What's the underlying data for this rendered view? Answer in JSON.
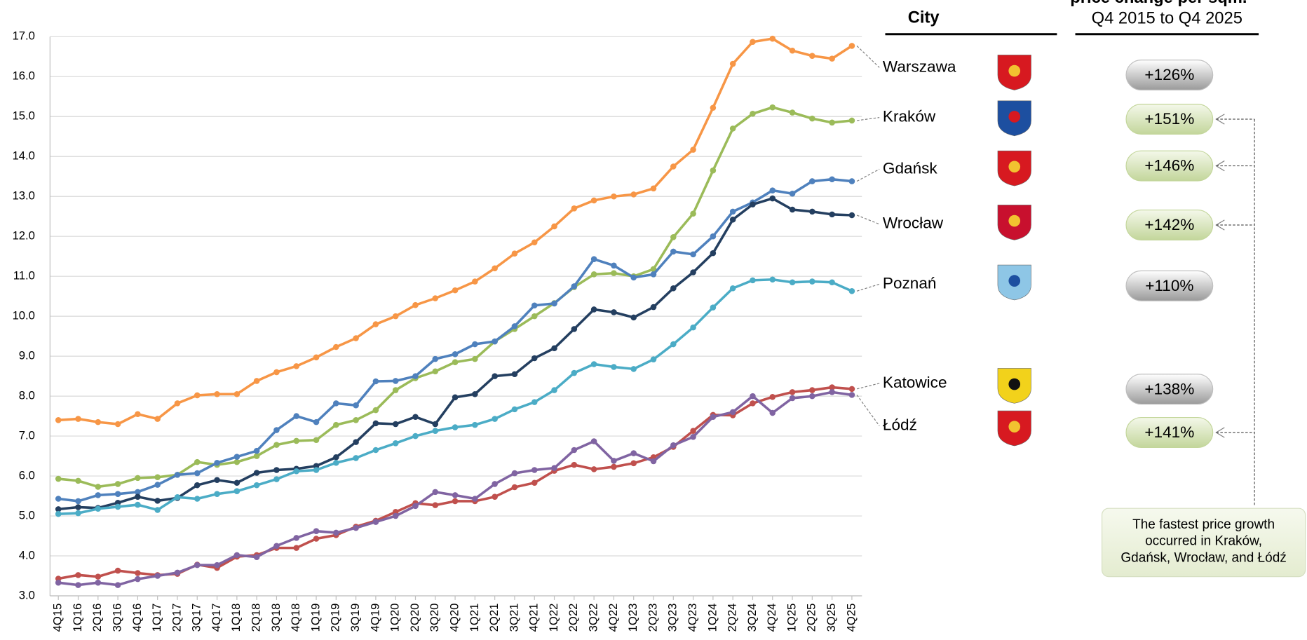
{
  "chart_data": {
    "type": "line",
    "header_change": "price change per sqm.",
    "header_period": "Q4 2015 to Q4 2025",
    "header_city": "City",
    "note": [
      "The fastest price growth",
      "occurred in Kraków,",
      "Gdańsk, Wrocław, and Łódź"
    ],
    "categories": [
      "4Q15",
      "1Q16",
      "2Q16",
      "3Q16",
      "4Q16",
      "1Q17",
      "2Q17",
      "3Q17",
      "4Q17",
      "1Q18",
      "2Q18",
      "3Q18",
      "4Q18",
      "1Q19",
      "2Q19",
      "3Q19",
      "4Q19",
      "1Q20",
      "2Q20",
      "3Q20",
      "4Q20",
      "1Q21",
      "2Q21",
      "3Q21",
      "4Q21",
      "1Q22",
      "2Q22",
      "3Q22",
      "4Q22",
      "1Q23",
      "2Q23",
      "3Q23",
      "4Q23",
      "1Q24",
      "2Q24",
      "3Q24",
      "4Q24",
      "1Q25",
      "2Q25",
      "3Q25",
      "4Q25"
    ],
    "ylim": [
      3,
      17
    ],
    "yticks": [
      {
        "value": 3,
        "label": "3.0"
      },
      {
        "value": 4,
        "label": "4.0"
      },
      {
        "value": 5,
        "label": "5.0"
      },
      {
        "value": 6,
        "label": "6.0"
      },
      {
        "value": 7,
        "label": "7.0"
      },
      {
        "value": 8,
        "label": "8.0"
      },
      {
        "value": 9,
        "label": "9.0"
      },
      {
        "value": 10,
        "label": "10.0"
      },
      {
        "value": 11,
        "label": "11.0"
      },
      {
        "value": 12,
        "label": "12.0"
      },
      {
        "value": 13,
        "label": "13.0"
      },
      {
        "value": 14,
        "label": "14.0"
      },
      {
        "value": 15,
        "label": "15.0"
      },
      {
        "value": 16,
        "label": "16.0"
      },
      {
        "value": 17,
        "label": "17.0"
      }
    ],
    "grid": true,
    "series": [
      {
        "name": "Warszawa",
        "color": "#f79646",
        "change": 126,
        "change_label": "+126%",
        "highlight": false,
        "values": [
          7.4,
          7.43,
          7.35,
          7.3,
          7.55,
          7.43,
          7.82,
          8.02,
          8.05,
          8.05,
          8.38,
          8.6,
          8.75,
          8.97,
          9.23,
          9.45,
          9.8,
          10.0,
          10.28,
          10.45,
          10.65,
          10.87,
          11.2,
          11.57,
          11.85,
          12.25,
          12.7,
          12.9,
          13.0,
          13.05,
          13.2,
          13.75,
          14.17,
          15.22,
          16.32,
          16.87,
          16.95,
          16.65,
          16.52,
          16.45,
          16.77
        ]
      },
      {
        "name": "Kraków",
        "color": "#9bbb59",
        "change": 151,
        "change_label": "+151%",
        "highlight": true,
        "values": [
          5.93,
          5.88,
          5.73,
          5.8,
          5.95,
          5.97,
          6.03,
          6.35,
          6.28,
          6.35,
          6.5,
          6.78,
          6.88,
          6.9,
          7.28,
          7.4,
          7.65,
          8.15,
          8.45,
          8.62,
          8.85,
          8.93,
          9.37,
          9.68,
          10.0,
          10.33,
          10.73,
          11.05,
          11.08,
          11.0,
          11.18,
          11.98,
          12.57,
          13.65,
          14.7,
          15.07,
          15.23,
          15.1,
          14.95,
          14.85,
          14.9
        ]
      },
      {
        "name": "Gdańsk",
        "color": "#4f81bd",
        "change": 146,
        "change_label": "+146%",
        "highlight": true,
        "values": [
          5.43,
          5.37,
          5.52,
          5.55,
          5.6,
          5.78,
          6.03,
          6.07,
          6.33,
          6.48,
          6.63,
          7.15,
          7.5,
          7.35,
          7.82,
          7.77,
          8.37,
          8.38,
          8.5,
          8.93,
          9.05,
          9.3,
          9.37,
          9.75,
          10.27,
          10.32,
          10.75,
          11.43,
          11.27,
          10.97,
          11.05,
          11.62,
          11.55,
          12.0,
          12.62,
          12.85,
          13.15,
          13.07,
          13.38,
          13.43,
          13.38
        ]
      },
      {
        "name": "Wrocław",
        "color": "#243f60",
        "change": 142,
        "change_label": "+142%",
        "highlight": true,
        "values": [
          5.17,
          5.22,
          5.2,
          5.33,
          5.48,
          5.38,
          5.45,
          5.77,
          5.9,
          5.83,
          6.08,
          6.15,
          6.18,
          6.25,
          6.47,
          6.85,
          7.32,
          7.3,
          7.48,
          7.3,
          7.97,
          8.05,
          8.5,
          8.55,
          8.95,
          9.2,
          9.68,
          10.17,
          10.1,
          9.97,
          10.23,
          10.7,
          11.1,
          11.58,
          12.42,
          12.8,
          12.95,
          12.67,
          12.62,
          12.55,
          12.53
        ]
      },
      {
        "name": "Poznań",
        "color": "#4bacc6",
        "change": 110,
        "change_label": "+110%",
        "highlight": false,
        "values": [
          5.05,
          5.07,
          5.18,
          5.23,
          5.28,
          5.15,
          5.47,
          5.43,
          5.55,
          5.62,
          5.77,
          5.92,
          6.12,
          6.15,
          6.33,
          6.45,
          6.65,
          6.82,
          7.0,
          7.13,
          7.22,
          7.28,
          7.43,
          7.67,
          7.85,
          8.15,
          8.58,
          8.8,
          8.73,
          8.68,
          8.92,
          9.3,
          9.72,
          10.22,
          10.7,
          10.9,
          10.92,
          10.85,
          10.87,
          10.85,
          10.63
        ]
      },
      {
        "name": "Katowice",
        "color": "#c0504d",
        "change": 138,
        "change_label": "+138%",
        "highlight": false,
        "values": [
          3.43,
          3.52,
          3.48,
          3.63,
          3.57,
          3.52,
          3.55,
          3.78,
          3.7,
          3.98,
          4.02,
          4.2,
          4.2,
          4.43,
          4.52,
          4.73,
          4.88,
          5.1,
          5.32,
          5.27,
          5.37,
          5.37,
          5.48,
          5.72,
          5.83,
          6.13,
          6.28,
          6.17,
          6.23,
          6.32,
          6.47,
          6.73,
          7.13,
          7.53,
          7.52,
          7.82,
          7.98,
          8.1,
          8.15,
          8.22,
          8.18
        ]
      },
      {
        "name": "Łódź",
        "color": "#8064a2",
        "change": 141,
        "change_label": "+141%",
        "highlight": true,
        "values": [
          3.33,
          3.27,
          3.33,
          3.27,
          3.42,
          3.5,
          3.58,
          3.77,
          3.77,
          4.02,
          3.97,
          4.25,
          4.45,
          4.62,
          4.58,
          4.7,
          4.85,
          5.0,
          5.25,
          5.6,
          5.52,
          5.43,
          5.8,
          6.07,
          6.15,
          6.2,
          6.65,
          6.87,
          6.38,
          6.57,
          6.37,
          6.77,
          6.98,
          7.48,
          7.6,
          8.0,
          7.58,
          7.95,
          8.0,
          8.1,
          8.03
        ]
      }
    ]
  }
}
